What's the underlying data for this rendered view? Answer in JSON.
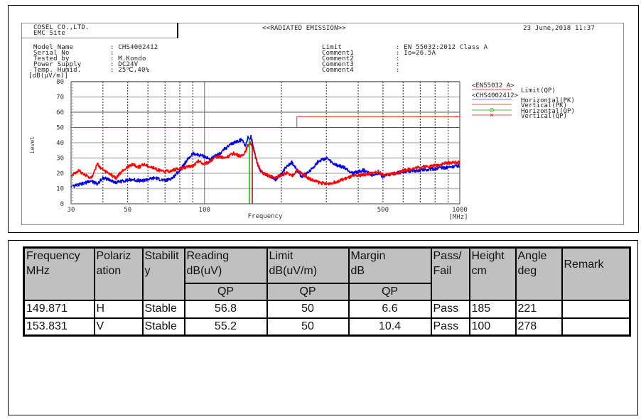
{
  "report": {
    "company": "COSEL CO.,LTD.",
    "site": "EMC Site",
    "title": "<<RADIATED EMISSION>>",
    "datetime": "23 June,2018 11:37",
    "info_left": [
      {
        "label": "Model Name",
        "value": ": CHS4002412"
      },
      {
        "label": "Serial No",
        "value": ":"
      },
      {
        "label": "Tested by",
        "value": ": M.Kondo"
      },
      {
        "label": "Power Supply",
        "value": ": DC24V"
      },
      {
        "label": "Temp. Humid.",
        "value": ": 25℃,40%"
      }
    ],
    "info_right": [
      {
        "label": "Limit",
        "value": ": EN 55032:2012 Class A"
      },
      {
        "label": "Comment1",
        "value": ": Io=26.5A"
      },
      {
        "label": "Comment2",
        "value": ":"
      },
      {
        "label": "Comment3",
        "value": ":"
      },
      {
        "label": "Comment4",
        "value": ":"
      }
    ]
  },
  "chart_data": {
    "type": "line",
    "title": "<<RADIATED EMISSION>>",
    "xlabel": "Frequency",
    "xunit": "[MHz]",
    "ylabel": "Level",
    "yunit": "[dB(μV/m)]",
    "xscale": "log",
    "xlim": [
      30,
      1000
    ],
    "ylim": [
      0,
      80
    ],
    "xticks": [
      30,
      50,
      100,
      500,
      1000
    ],
    "yticks": [
      0,
      10,
      20,
      30,
      40,
      50,
      60,
      70,
      80
    ],
    "grid": true,
    "legend_position": "right",
    "legend": [
      {
        "group": "<EN55032 A>",
        "name": "Limit(QP)",
        "color": "#e05050"
      },
      {
        "group": "<CHS4002412>",
        "name": "Horizontal(PK)",
        "color": "#8080e0"
      },
      {
        "group": "<CHS4002412>",
        "name": "Vertical(PK)",
        "color": "#e05050"
      },
      {
        "group": "<CHS4002412>",
        "name": "Horizontal(QP)",
        "color": "#40c040",
        "marker": "o"
      },
      {
        "group": "<CHS4002412>",
        "name": "Vertical(QP)",
        "color": "#e05050",
        "marker": "x"
      }
    ],
    "series": [
      {
        "name": "Limit(QP)",
        "color": "#ff3030",
        "x": [
          30,
          230,
          230,
          1000
        ],
        "y": [
          50,
          50,
          57,
          57
        ]
      },
      {
        "name": "Horizontal(PK)",
        "color": "#0000e0",
        "x": [
          30,
          33,
          36,
          38,
          40,
          42,
          45,
          48,
          52,
          56,
          60,
          64,
          70,
          75,
          80,
          85,
          90,
          95,
          100,
          105,
          110,
          115,
          120,
          130,
          140,
          145,
          148,
          150,
          152,
          154,
          156,
          160,
          165,
          170,
          180,
          190,
          200,
          210,
          220,
          230,
          240,
          260,
          280,
          300,
          320,
          350,
          380,
          420,
          450,
          480,
          500,
          530,
          560,
          600,
          700,
          800,
          900,
          1000
        ],
        "y": [
          11,
          13,
          15,
          13,
          17,
          16,
          14,
          15,
          16,
          15,
          16,
          17,
          15,
          17,
          22,
          28,
          33,
          32,
          31,
          29,
          31,
          33,
          36,
          40,
          42,
          38,
          44,
          42,
          44,
          40,
          35,
          28,
          22,
          20,
          18,
          16,
          19,
          25,
          27,
          22,
          18,
          22,
          28,
          30,
          26,
          24,
          20,
          22,
          19,
          20,
          18,
          19,
          20,
          21,
          22,
          23,
          24,
          25
        ]
      },
      {
        "name": "Vertical(PK)",
        "color": "#ff0000",
        "x": [
          30,
          32,
          34,
          36,
          38,
          40,
          42,
          45,
          48,
          52,
          55,
          58,
          62,
          66,
          70,
          75,
          80,
          85,
          90,
          95,
          100,
          105,
          110,
          115,
          120,
          130,
          140,
          145,
          150,
          153,
          156,
          160,
          165,
          170,
          180,
          190,
          200,
          210,
          220,
          230,
          240,
          260,
          280,
          300,
          320,
          350,
          380,
          420,
          450,
          480,
          500,
          530,
          560,
          600,
          700,
          800,
          900,
          1000
        ],
        "y": [
          18,
          22,
          19,
          17,
          26,
          22,
          20,
          17,
          22,
          26,
          24,
          26,
          24,
          22,
          21,
          22,
          23,
          24,
          25,
          28,
          26,
          28,
          30,
          31,
          30,
          33,
          31,
          35,
          40,
          39,
          34,
          29,
          22,
          20,
          18,
          17,
          19,
          20,
          18,
          22,
          20,
          16,
          14,
          13,
          14,
          16,
          18,
          19,
          20,
          21,
          19,
          19,
          20,
          22,
          24,
          25,
          27,
          27
        ]
      },
      {
        "name": "Horizontal(QP)",
        "color": "#00c000",
        "type": "stem",
        "x": [
          149.871
        ],
        "y": [
          43.4
        ]
      },
      {
        "name": "Vertical(QP)",
        "color": "#c00000",
        "type": "stem",
        "x": [
          153.831
        ],
        "y": [
          39.6
        ]
      }
    ]
  },
  "table": {
    "headers": [
      {
        "l1": "Frequency",
        "l2": "MHz"
      },
      {
        "l1": "Polariz",
        "l2": "ation"
      },
      {
        "l1": "Stabilit",
        "l2": "y"
      },
      {
        "l1": "Reading",
        "l2": "dB(uV)",
        "sub": "QP"
      },
      {
        "l1": "Limit",
        "l2": "dB(uV/m)",
        "sub": "QP"
      },
      {
        "l1": "Margin",
        "l2": "dB",
        "sub": "QP"
      },
      {
        "l1": "Pass/",
        "l2": "Fail"
      },
      {
        "l1": "Height",
        "l2": "cm"
      },
      {
        "l1": "Angle",
        "l2": "deg"
      },
      {
        "l1": "Remark",
        "l2": ""
      }
    ],
    "rows": [
      {
        "freq": "149.871",
        "pol": "H",
        "stab": "Stable",
        "reading": "56.8",
        "limit": "50",
        "margin": "6.6",
        "pass": "Pass",
        "height": "185",
        "angle": "221",
        "remark": ""
      },
      {
        "freq": "153.831",
        "pol": "V",
        "stab": "Stable",
        "reading": "55.2",
        "limit": "50",
        "margin": "10.4",
        "pass": "Pass",
        "height": "100",
        "angle": "278",
        "remark": ""
      }
    ]
  }
}
